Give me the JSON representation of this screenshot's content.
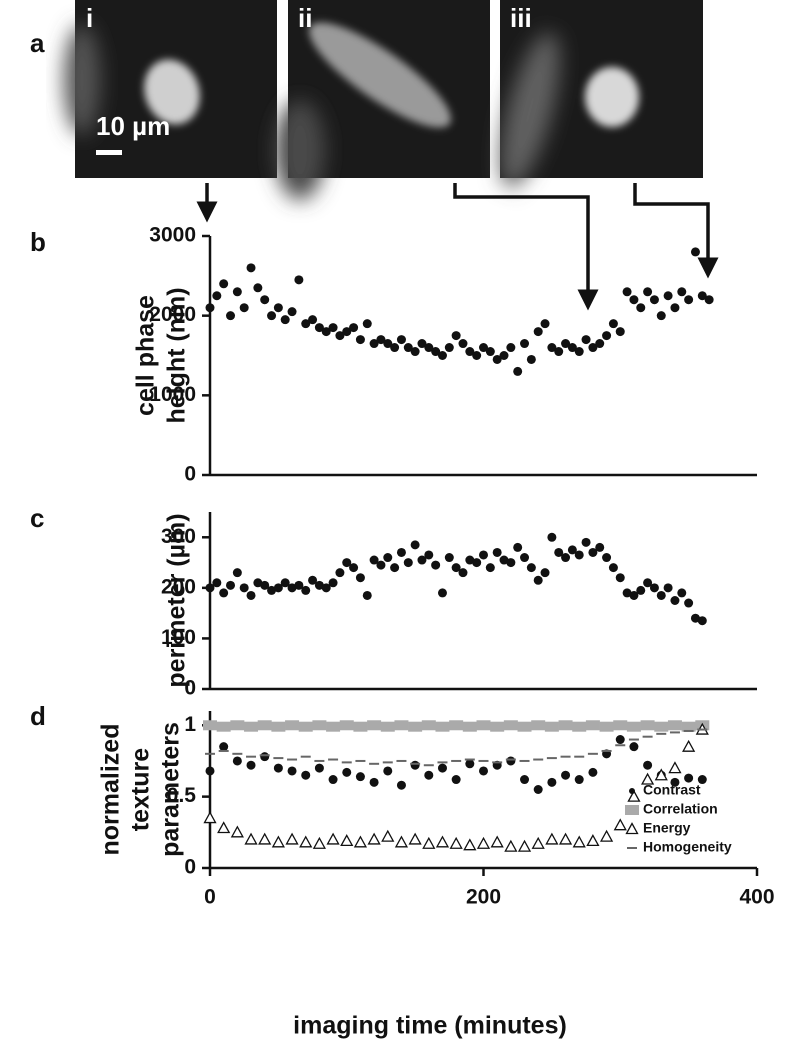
{
  "panel_labels": [
    "a",
    "b",
    "c",
    "d"
  ],
  "images": [
    {
      "label": "i"
    },
    {
      "label": "ii"
    },
    {
      "label": "iii"
    }
  ],
  "scale_bar": "10 µm",
  "chart_data": [
    {
      "type": "scatter",
      "ylabel": [
        "cell phase",
        "height (nm)"
      ],
      "xlim": [
        0,
        400
      ],
      "ylim": [
        0,
        3000
      ],
      "yticks": [
        0,
        1000,
        2000,
        3000
      ],
      "x": [
        0,
        5,
        10,
        15,
        20,
        25,
        30,
        35,
        40,
        45,
        50,
        55,
        60,
        65,
        70,
        75,
        80,
        85,
        90,
        95,
        100,
        105,
        110,
        115,
        120,
        125,
        130,
        135,
        140,
        145,
        150,
        155,
        160,
        165,
        170,
        175,
        180,
        185,
        190,
        195,
        200,
        205,
        210,
        215,
        220,
        225,
        230,
        235,
        240,
        245,
        250,
        255,
        260,
        265,
        270,
        275,
        280,
        285,
        290,
        295,
        300,
        305,
        310,
        315,
        320,
        325,
        330,
        335,
        340,
        345,
        350,
        355,
        360,
        365
      ],
      "series": [
        {
          "color": "#111111",
          "marker": "circle",
          "values": [
            2100,
            2250,
            2400,
            2000,
            2300,
            2100,
            2600,
            2350,
            2200,
            2000,
            2100,
            1950,
            2050,
            2450,
            1900,
            1950,
            1850,
            1800,
            1850,
            1750,
            1800,
            1850,
            1700,
            1900,
            1650,
            1700,
            1650,
            1600,
            1700,
            1600,
            1550,
            1650,
            1600,
            1550,
            1500,
            1600,
            1750,
            1650,
            1550,
            1500,
            1600,
            1550,
            1450,
            1500,
            1600,
            1300,
            1650,
            1450,
            1800,
            1900,
            1600,
            1550,
            1650,
            1600,
            1550,
            1700,
            1600,
            1650,
            1750,
            1900,
            1800,
            2300,
            2200,
            2100,
            2300,
            2200,
            2000,
            2250,
            2100,
            2300,
            2200,
            2800,
            2250,
            2200
          ]
        }
      ]
    },
    {
      "type": "scatter",
      "ylabel": [
        "perimeter (µm)"
      ],
      "xlim": [
        0,
        400
      ],
      "ylim": [
        0,
        350
      ],
      "yticks": [
        0,
        100,
        200,
        300
      ],
      "x": [
        0,
        5,
        10,
        15,
        20,
        25,
        30,
        35,
        40,
        45,
        50,
        55,
        60,
        65,
        70,
        75,
        80,
        85,
        90,
        95,
        100,
        105,
        110,
        115,
        120,
        125,
        130,
        135,
        140,
        145,
        150,
        155,
        160,
        165,
        170,
        175,
        180,
        185,
        190,
        195,
        200,
        205,
        210,
        215,
        220,
        225,
        230,
        235,
        240,
        245,
        250,
        255,
        260,
        265,
        270,
        275,
        280,
        285,
        290,
        295,
        300,
        305,
        310,
        315,
        320,
        325,
        330,
        335,
        340,
        345,
        350,
        355,
        360
      ],
      "series": [
        {
          "color": "#111111",
          "marker": "circle",
          "values": [
            200,
            210,
            190,
            205,
            230,
            200,
            185,
            210,
            205,
            195,
            200,
            210,
            200,
            205,
            195,
            215,
            205,
            200,
            210,
            230,
            250,
            240,
            220,
            185,
            255,
            245,
            260,
            240,
            270,
            250,
            285,
            255,
            265,
            245,
            190,
            260,
            240,
            230,
            255,
            250,
            265,
            240,
            270,
            255,
            250,
            280,
            260,
            240,
            215,
            230,
            300,
            270,
            260,
            275,
            265,
            290,
            270,
            280,
            260,
            240,
            220,
            190,
            185,
            195,
            210,
            200,
            185,
            200,
            175,
            190,
            170,
            140,
            135
          ]
        }
      ]
    },
    {
      "type": "scatter",
      "ylabel": [
        "normalized",
        "texture",
        "parameters"
      ],
      "xlabel": "imaging time (minutes)",
      "xlim": [
        0,
        400
      ],
      "xticks": [
        0,
        200,
        400
      ],
      "ylim": [
        0,
        1.1
      ],
      "yticks": [
        0,
        0.5,
        1
      ],
      "x": [
        0,
        10,
        20,
        30,
        40,
        50,
        60,
        70,
        80,
        90,
        100,
        110,
        120,
        130,
        140,
        150,
        160,
        170,
        180,
        190,
        200,
        210,
        220,
        230,
        240,
        250,
        260,
        270,
        280,
        290,
        300,
        310,
        320,
        330,
        340,
        350,
        360
      ],
      "series": [
        {
          "name": "Contrast",
          "color": "#111111",
          "marker": "circle",
          "values": [
            0.68,
            0.85,
            0.75,
            0.72,
            0.78,
            0.7,
            0.68,
            0.65,
            0.7,
            0.62,
            0.67,
            0.64,
            0.6,
            0.68,
            0.58,
            0.72,
            0.65,
            0.7,
            0.62,
            0.73,
            0.68,
            0.72,
            0.75,
            0.62,
            0.55,
            0.6,
            0.65,
            0.62,
            0.67,
            0.8,
            0.9,
            0.85,
            0.72,
            0.65,
            0.6,
            0.63,
            0.62
          ]
        },
        {
          "name": "Correlation",
          "color": "#aaaaaa",
          "marker": "square",
          "values": [
            1,
            0.99,
            1,
            0.99,
            1,
            0.99,
            1,
            0.99,
            1,
            0.99,
            1,
            0.99,
            1,
            0.99,
            1,
            0.99,
            1,
            0.99,
            1,
            0.99,
            1,
            0.99,
            1,
            0.99,
            1,
            0.99,
            1,
            0.99,
            1,
            0.99,
            1,
            0.99,
            1,
            0.99,
            1,
            0.99,
            1
          ]
        },
        {
          "name": "Energy",
          "color": "#111111",
          "marker": "triangle",
          "values": [
            0.35,
            0.28,
            0.25,
            0.2,
            0.2,
            0.18,
            0.2,
            0.18,
            0.17,
            0.2,
            0.19,
            0.18,
            0.2,
            0.22,
            0.18,
            0.2,
            0.17,
            0.18,
            0.17,
            0.16,
            0.17,
            0.18,
            0.15,
            0.15,
            0.17,
            0.2,
            0.2,
            0.18,
            0.19,
            0.22,
            0.3,
            0.5,
            0.62,
            0.65,
            0.7,
            0.85,
            0.97
          ]
        },
        {
          "name": "Homogeneity",
          "color": "#666666",
          "marker": "dash",
          "values": [
            0.8,
            0.82,
            0.8,
            0.78,
            0.79,
            0.77,
            0.76,
            0.78,
            0.75,
            0.76,
            0.74,
            0.75,
            0.73,
            0.74,
            0.75,
            0.73,
            0.72,
            0.74,
            0.75,
            0.76,
            0.75,
            0.74,
            0.76,
            0.75,
            0.76,
            0.77,
            0.78,
            0.78,
            0.8,
            0.82,
            0.86,
            0.9,
            0.92,
            0.94,
            0.95,
            0.96,
            0.97
          ]
        }
      ],
      "legend": "lower right"
    }
  ]
}
